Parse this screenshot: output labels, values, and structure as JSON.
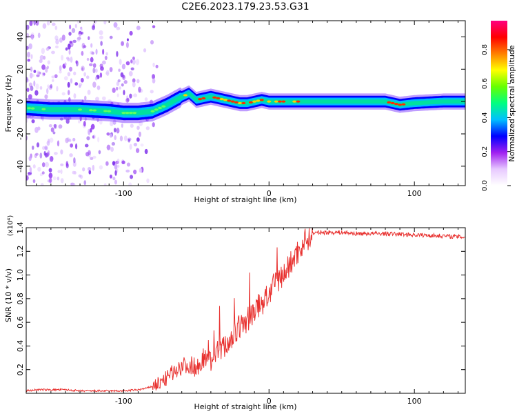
{
  "title": "C2E6.2023.179.23.53.G31",
  "colors": {
    "snr_line": "#e8312f",
    "track_low": "#0000ff",
    "track_mid": "#00e0a0",
    "track_high": "#ff2a00",
    "noise": "#7b2cf0",
    "axis": "#000000"
  },
  "colorbar": {
    "label": "Normalized spectral amplitude",
    "ticks": [
      "0.0",
      "0.2",
      "0.4",
      "0.6",
      "0.8"
    ],
    "stops": [
      "#ffffff",
      "#e7c9ff",
      "#a020f0",
      "#0000ff",
      "#00c0ff",
      "#00ff80",
      "#66ff00",
      "#ffff00",
      "#ff8000",
      "#ff0000",
      "#ff0080"
    ]
  },
  "chart_data": [
    {
      "type": "heatmap",
      "xlabel": "Height of straight line (km)",
      "ylabel": "Frequency (Hz)",
      "xlim": [
        -167,
        135
      ],
      "ylim": [
        -52,
        50
      ],
      "xticks": [
        -100,
        0,
        100
      ],
      "yticks": [
        -40,
        -20,
        0,
        20,
        40
      ],
      "xtick_labels": [
        "-100",
        "0",
        "100"
      ],
      "ytick_labels": [
        "-40",
        "-20",
        "0",
        "20",
        "40"
      ],
      "track": {
        "x": [
          -167,
          -150,
          -130,
          -110,
          -100,
          -90,
          -80,
          -70,
          -62,
          -55,
          -50,
          -45,
          -40,
          -35,
          -30,
          -25,
          -20,
          -15,
          -10,
          -5,
          0,
          10,
          20,
          40,
          60,
          80,
          85,
          90,
          100,
          120,
          135
        ],
        "y": [
          -4,
          -5,
          -5,
          -6,
          -7,
          -7,
          -6,
          -2,
          2,
          5,
          1,
          2,
          3,
          2,
          1,
          0,
          -1,
          -1,
          0,
          1,
          0,
          0,
          0,
          0,
          0,
          0,
          -1,
          -2,
          -1,
          0,
          0
        ]
      }
    },
    {
      "type": "line",
      "xlabel": "Height of straight line (km)",
      "ylabel": "SNR (10 * v/v)",
      "scale_label": "(x10⁴)",
      "xlim": [
        -167,
        135
      ],
      "ylim": [
        0,
        1.4
      ],
      "xticks": [
        -100,
        0,
        100
      ],
      "yticks": [
        0.2,
        0.4,
        0.6,
        0.8,
        1.0,
        1.2,
        1.4
      ],
      "xtick_labels": [
        "-100",
        "0",
        "100"
      ],
      "ytick_labels": [
        "0.2",
        "0.4",
        "0.6",
        "0.8",
        "1.0",
        "1.2",
        "1.4"
      ],
      "series": [
        {
          "x": [
            -167,
            -160,
            -150,
            -140,
            -130,
            -120,
            -110,
            -100,
            -90,
            -85,
            -80,
            -75,
            -70,
            -65,
            -60,
            -55,
            -50,
            -45,
            -40,
            -35,
            -30,
            -25,
            -20,
            -15,
            -10,
            -5,
            0,
            5,
            10,
            15,
            20,
            25,
            30,
            35,
            40,
            50,
            60,
            80,
            100,
            120,
            135
          ],
          "values": [
            0.02,
            0.03,
            0.03,
            0.03,
            0.02,
            0.02,
            0.02,
            0.02,
            0.03,
            0.04,
            0.06,
            0.09,
            0.13,
            0.19,
            0.23,
            0.24,
            0.22,
            0.3,
            0.28,
            0.36,
            0.4,
            0.48,
            0.56,
            0.62,
            0.7,
            0.76,
            0.84,
            0.94,
            1.0,
            1.1,
            1.2,
            1.3,
            1.35,
            1.36,
            1.36,
            1.36,
            1.35,
            1.35,
            1.34,
            1.33,
            1.32
          ]
        }
      ]
    }
  ]
}
